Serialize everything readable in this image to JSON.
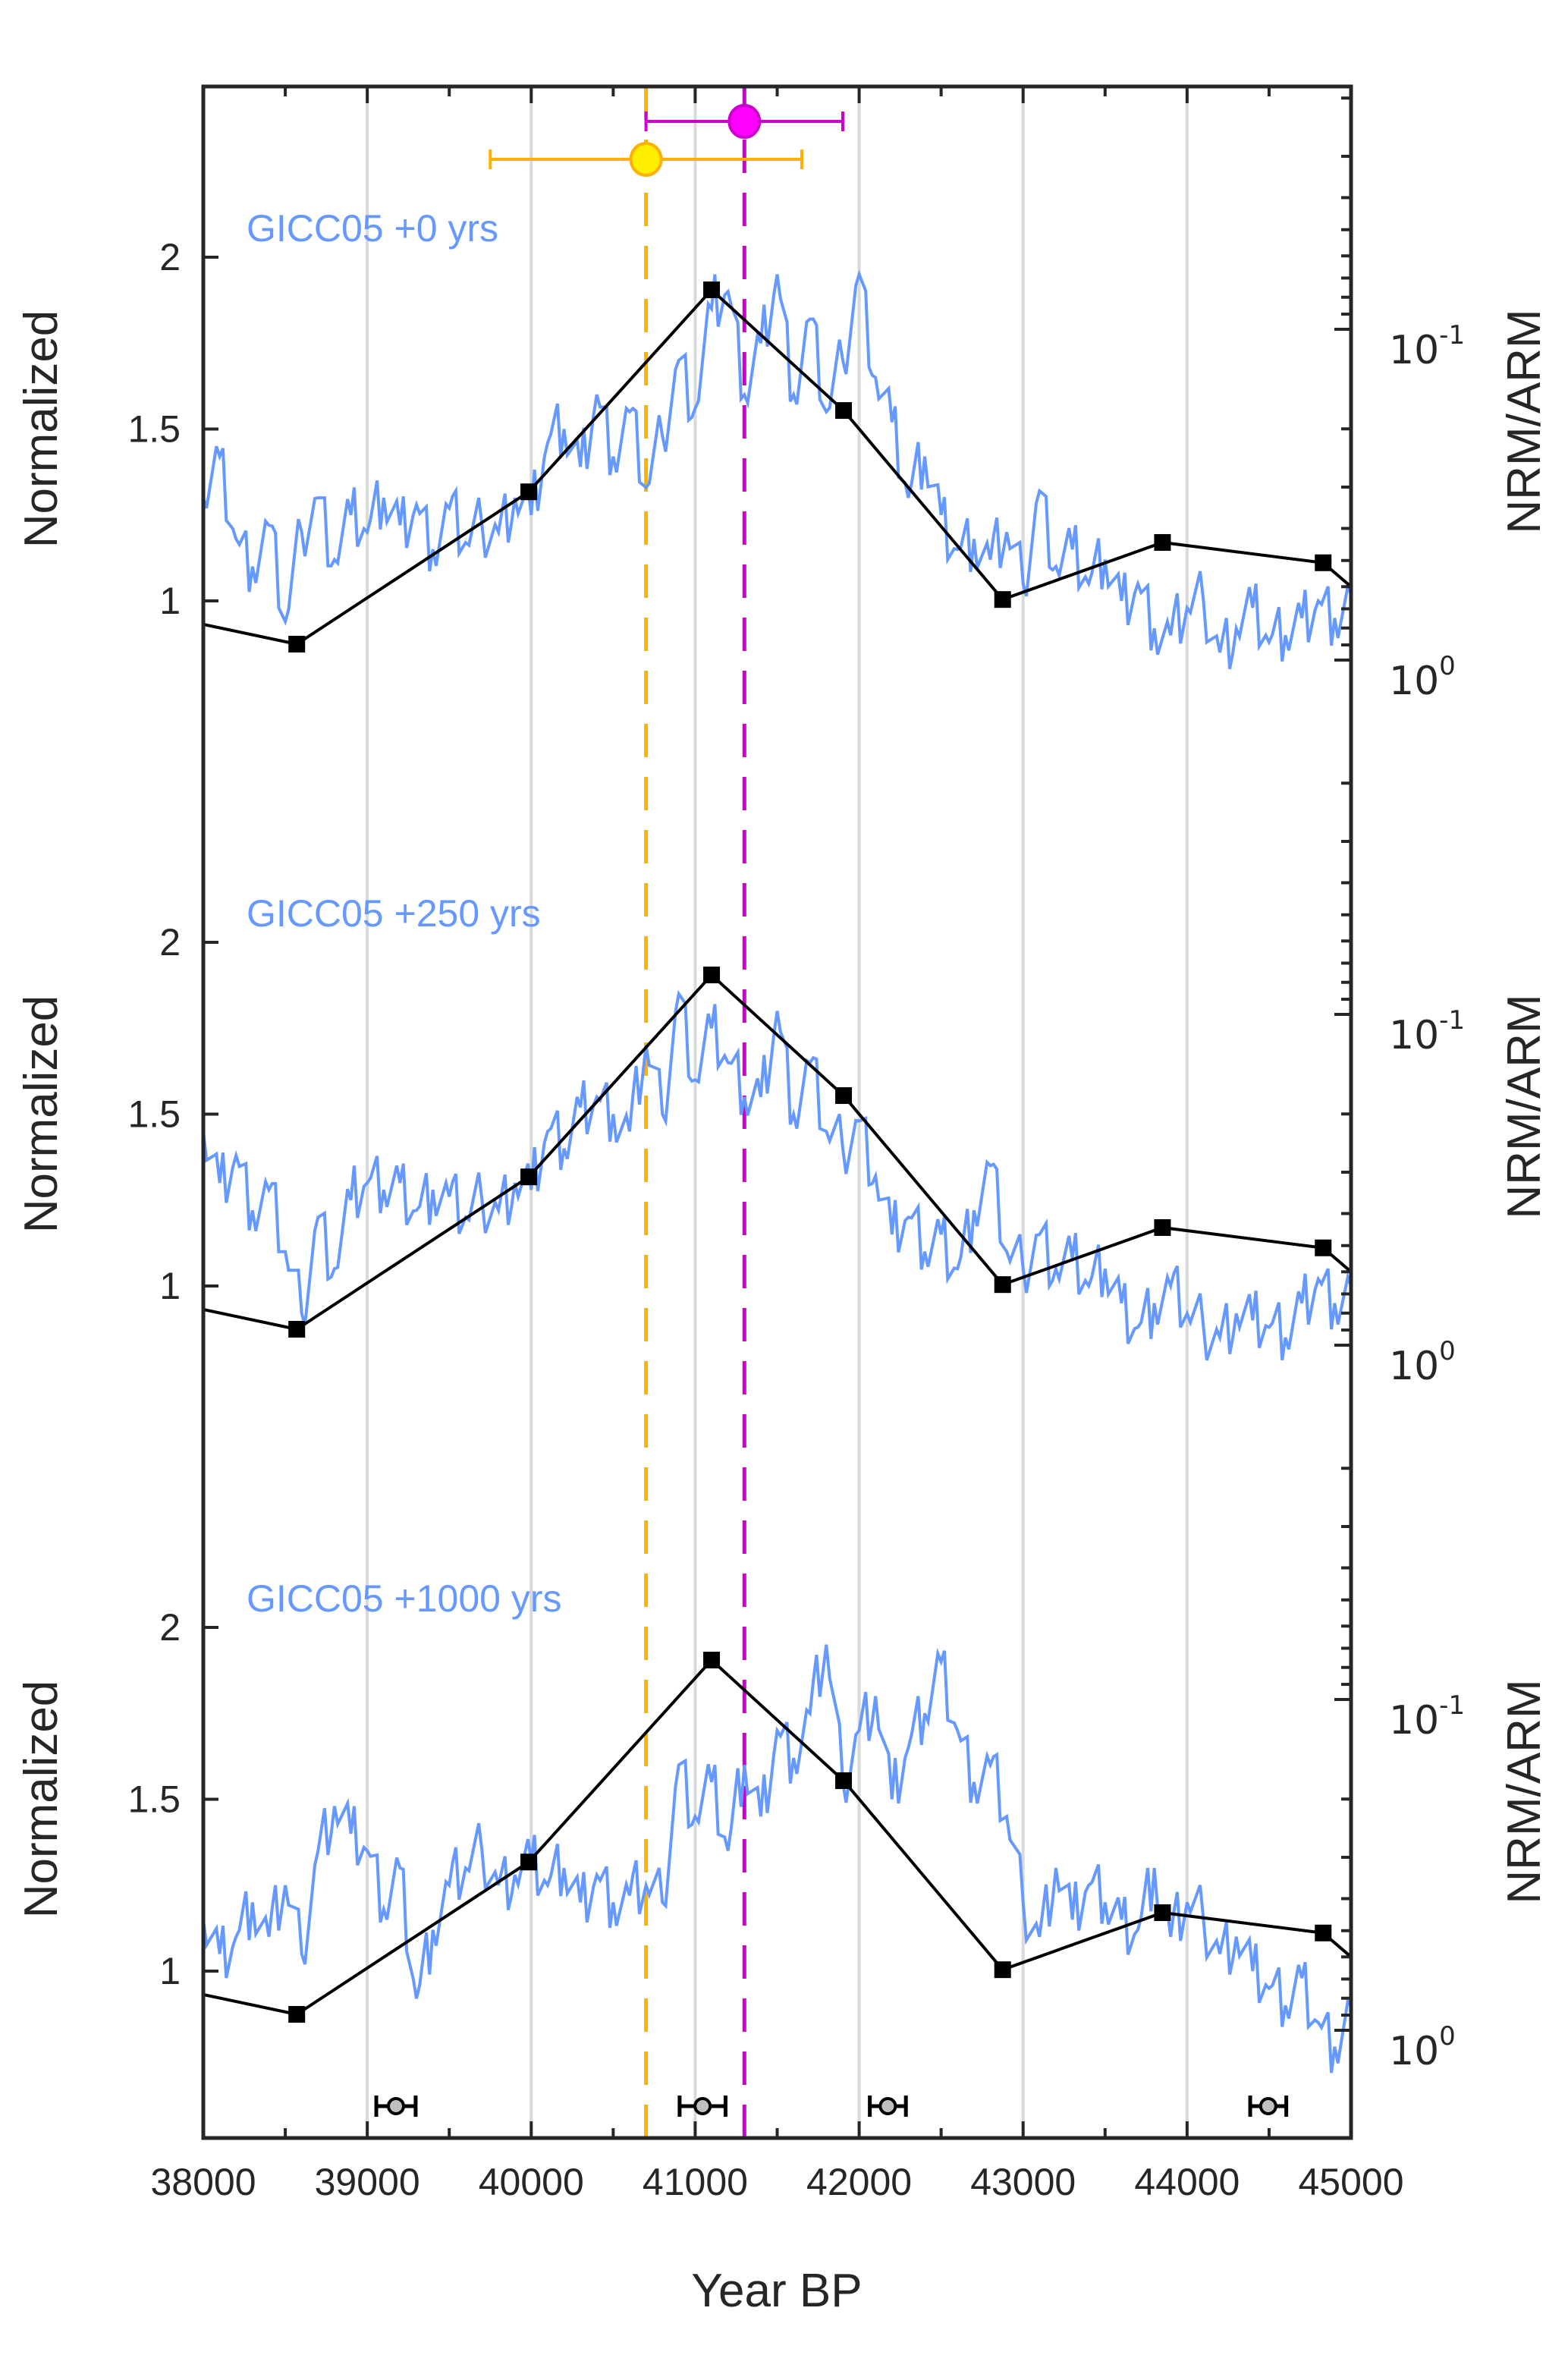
{
  "chart_data": {
    "type": "line",
    "title": "",
    "xlabel": "Year BP",
    "xlim": [
      38000,
      45000
    ],
    "x_ticks": [
      38000,
      39000,
      40000,
      41000,
      42000,
      43000,
      44000,
      45000
    ],
    "x_tick_labels": [
      "38000",
      "39000",
      "40000",
      "41000",
      "42000",
      "43000",
      "44000",
      "45000"
    ],
    "grid": "vertical at major x ticks",
    "left_axis": {
      "label": "Normalized",
      "ticks": [
        1,
        1.5,
        2
      ],
      "tick_labels": [
        "1",
        "1.5",
        "2"
      ],
      "ylim_per_panel": [
        0.5,
        2.55
      ]
    },
    "right_axis": {
      "label": "NRM/ARM",
      "scale": "log",
      "direction": "reversed",
      "tick_labels": [
        {
          "base": "10",
          "exp": "-1",
          "value": 0.1
        },
        {
          "base": "10",
          "exp": "0",
          "value": 1
        }
      ],
      "ylim_per_panel": [
        0.019,
        1.35
      ]
    },
    "colors": {
      "ice_core": "#6699ff",
      "nrm_arm": "#000000",
      "yellow_marker_fill": "#ffee00",
      "yellow_marker_edge": "#ffb000",
      "magenta": "#cc00cc",
      "magenta_fill": "#ff00ff",
      "grid": "#d9d9d9",
      "axis": "#262626",
      "tie_point_fill": "#bfbfbf"
    },
    "panels": [
      {
        "label": "GICC05 +0 yrs",
        "offset_years": 0
      },
      {
        "label": "GICC05 +250 yrs",
        "offset_years": 250
      },
      {
        "label": "GICC05 +1000 yrs",
        "offset_years": 1000
      }
    ],
    "nrm_arm_series": {
      "name": "NRM/ARM",
      "x": [
        38570,
        39985,
        41100,
        41905,
        42875,
        43850,
        44830
      ],
      "values": [
        0.895,
        0.31,
        0.076,
        0.176,
        0.656,
        0.441,
        0.508
      ],
      "endpoint_values": {
        "at_38000": 0.78,
        "at_45000": 0.6
      }
    },
    "ice_core_series": [
      {
        "name": "GICC05 +0 yrs",
        "x_start": 38000,
        "x_step": 100,
        "values": [
          1.3,
          1.42,
          1.18,
          1.1,
          1.22,
          0.94,
          1.2,
          1.3,
          1.12,
          1.25,
          1.2,
          1.3,
          1.22,
          1.28,
          1.15,
          1.27,
          1.17,
          1.22,
          1.2,
          1.3,
          1.25,
          1.46,
          1.5,
          1.39,
          1.6,
          1.42,
          1.55,
          1.33,
          1.48,
          1.7,
          1.56,
          1.85,
          1.9,
          1.6,
          1.75,
          1.95,
          1.6,
          1.82,
          1.55,
          1.7,
          1.95,
          1.65,
          1.52,
          1.3,
          1.42,
          1.25,
          1.15,
          1.18,
          1.12,
          1.2,
          1.05,
          1.32,
          1.1,
          1.15,
          1.05,
          1.12,
          1.0,
          1.05,
          0.92,
          0.9,
          0.98,
          1.0,
          0.85,
          0.92,
          0.98,
          0.88,
          0.9,
          0.95,
          1.0,
          0.95,
          1.02
        ]
      },
      {
        "name": "GICC05 +250 yrs",
        "x_start": 38000,
        "x_step": 100,
        "values": [
          1.45,
          1.3,
          1.38,
          1.22,
          1.28,
          1.1,
          0.92,
          1.2,
          1.05,
          1.25,
          1.3,
          1.28,
          1.3,
          1.22,
          1.28,
          1.26,
          1.2,
          1.25,
          1.22,
          1.3,
          1.28,
          1.45,
          1.4,
          1.52,
          1.55,
          1.5,
          1.45,
          1.7,
          1.5,
          1.85,
          1.6,
          1.75,
          1.65,
          1.55,
          1.55,
          1.8,
          1.5,
          1.65,
          1.45,
          1.4,
          1.48,
          1.32,
          1.15,
          1.2,
          1.1,
          1.15,
          1.05,
          1.22,
          1.35,
          1.1,
          1.05,
          1.15,
          1.05,
          1.08,
          1.0,
          1.05,
          0.95,
          0.88,
          0.95,
          1.0,
          0.92,
          0.88,
          0.85,
          0.92,
          0.9,
          0.88,
          0.85,
          0.95,
          1.02,
          0.95,
          1.0
        ]
      },
      {
        "name": "GICC05 +1000 yrs",
        "x_start": 38000,
        "x_step": 100,
        "values": [
          1.15,
          1.05,
          1.1,
          1.2,
          1.1,
          1.25,
          1.05,
          1.35,
          1.48,
          1.4,
          1.35,
          1.18,
          1.3,
          0.92,
          1.12,
          1.25,
          1.3,
          1.35,
          1.25,
          1.28,
          1.32,
          1.25,
          1.3,
          1.2,
          1.28,
          1.2,
          1.22,
          1.25,
          1.2,
          1.6,
          1.45,
          1.55,
          1.35,
          1.6,
          1.45,
          1.7,
          1.62,
          1.75,
          1.95,
          1.55,
          1.7,
          1.8,
          1.5,
          1.65,
          1.75,
          1.9,
          1.7,
          1.55,
          1.6,
          1.45,
          1.2,
          1.1,
          1.3,
          1.15,
          1.25,
          1.2,
          1.15,
          1.12,
          1.3,
          1.1,
          1.2,
          1.15,
          1.05,
          1.1,
          1.0,
          0.95,
          0.9,
          0.98,
          0.85,
          0.78,
          0.9
        ]
      }
    ],
    "age_markers": [
      {
        "name": "yellow",
        "x": 40700,
        "xerr_minus": 950,
        "xerr_plus": 950
      },
      {
        "name": "magenta",
        "x": 41300,
        "xerr_minus": 600,
        "xerr_plus": 600
      }
    ],
    "vertical_dashed_lines": [
      {
        "name": "yellow",
        "x": 40700
      },
      {
        "name": "magenta",
        "x": 41300
      }
    ],
    "tie_points": [
      {
        "x": 39175,
        "xerr": 120
      },
      {
        "x": 41045,
        "xerr": 140
      },
      {
        "x": 42175,
        "xerr": 110
      },
      {
        "x": 44495,
        "xerr": 110
      }
    ]
  }
}
